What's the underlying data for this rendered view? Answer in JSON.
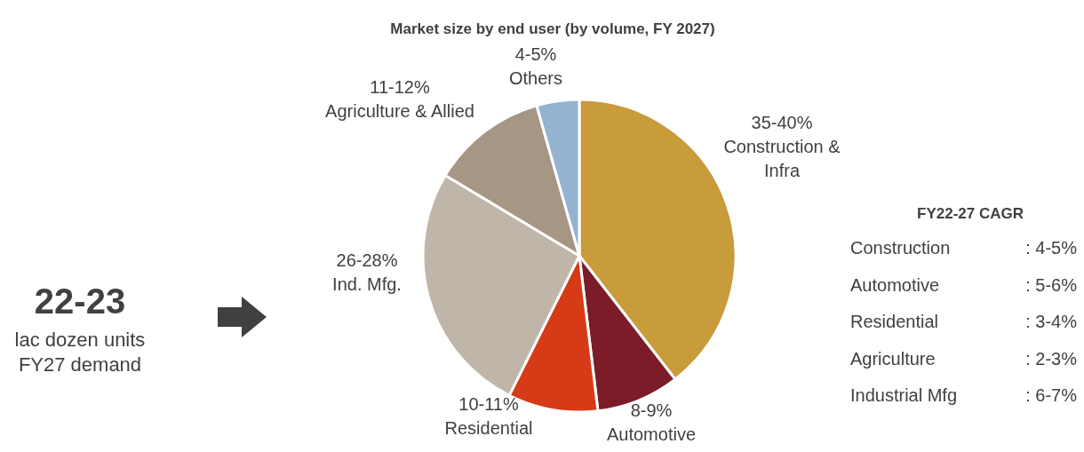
{
  "chart_data": {
    "type": "pie",
    "title": "Market size by end user (by volume, FY 2027)",
    "categories": [
      "35-40%\nConstruction &\nInfra",
      "8-9%\nAutomotive",
      "10-11%\nResidential",
      "26-28%\nInd. Mfg.",
      "11-12%\nAgriculture & Allied",
      "4-5%\nOthers"
    ],
    "values": [
      39.5,
      8.6,
      9.3,
      26.2,
      12,
      4.4
    ],
    "colors": [
      "#c89b3b",
      "#7b1c28",
      "#d63a16",
      "#bfb6a9",
      "#a69684",
      "#93b3d0"
    ],
    "annotations": [
      "22-23",
      "lac dozen units",
      "FY27 demand",
      "FY22-27 CAGR",
      "Construction",
      ": 4-5%",
      "Automotive",
      ": 5-6%",
      "Residential",
      ": 3-4%",
      "Agriculture",
      ": 2-3%",
      "Industrial Mfg",
      ": 6-7%"
    ]
  }
}
